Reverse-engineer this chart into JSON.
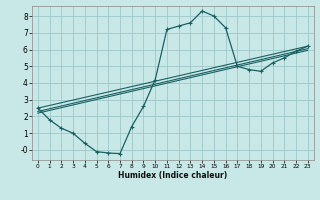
{
  "title": "",
  "xlabel": "Humidex (Indice chaleur)",
  "ylabel": "",
  "bg_color": "#c8e8e8",
  "grid_color": "#a0c8c8",
  "line_color": "#1a6060",
  "xlim": [
    -0.5,
    23.5
  ],
  "ylim": [
    -0.6,
    8.6
  ],
  "xticks": [
    0,
    1,
    2,
    3,
    4,
    5,
    6,
    7,
    8,
    9,
    10,
    11,
    12,
    13,
    14,
    15,
    16,
    17,
    18,
    19,
    20,
    21,
    22,
    23
  ],
  "yticks": [
    0,
    1,
    2,
    3,
    4,
    5,
    6,
    7,
    8
  ],
  "ytick_labels": [
    "-0",
    "1",
    "2",
    "3",
    "4",
    "5",
    "6",
    "7",
    "8"
  ],
  "curve1_x": [
    0,
    1,
    2,
    3,
    4,
    5,
    6,
    7,
    8,
    9,
    10,
    11,
    12,
    13,
    14,
    15,
    16,
    17,
    18,
    19,
    20,
    21,
    22,
    23
  ],
  "curve1_y": [
    2.5,
    1.8,
    1.3,
    1.0,
    0.4,
    -0.1,
    -0.18,
    -0.22,
    1.4,
    2.6,
    4.2,
    7.2,
    7.4,
    7.6,
    8.3,
    8.0,
    7.3,
    5.0,
    4.8,
    4.7,
    5.2,
    5.5,
    5.9,
    6.2
  ],
  "line2_x": [
    0,
    23
  ],
  "line2_y": [
    2.5,
    6.2
  ],
  "line3_x": [
    0,
    23
  ],
  "line3_y": [
    2.3,
    6.05
  ],
  "line4_x": [
    0,
    23
  ],
  "line4_y": [
    2.2,
    5.95
  ]
}
